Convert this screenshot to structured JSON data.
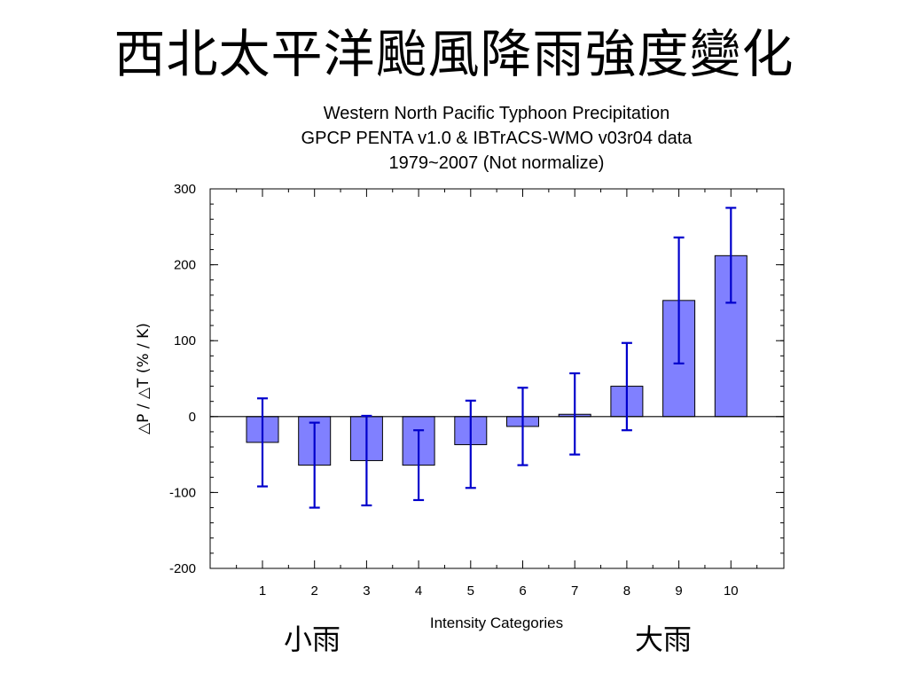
{
  "slide": {
    "title": "西北太平洋颱風降雨強度變化"
  },
  "chart_titles": [
    "Western North Pacific Typhoon Precipitation",
    "GPCP PENTA v1.0 & IBTrACS-WMO v03r04 data",
    "1979~2007 (Not normalize)"
  ],
  "chart_data": {
    "type": "bar",
    "categories": [
      "1",
      "2",
      "3",
      "4",
      "5",
      "6",
      "7",
      "8",
      "9",
      "10"
    ],
    "values": [
      -34,
      -64,
      -58,
      -64,
      -37,
      -13,
      3,
      40,
      153,
      212
    ],
    "error_low": [
      -92,
      -120,
      -117,
      -110,
      -94,
      -64,
      -50,
      -18,
      70,
      150
    ],
    "error_high": [
      24,
      -8,
      1,
      -18,
      21,
      38,
      57,
      97,
      236,
      275
    ],
    "xlabel": "Intensity Categories",
    "ylabel": "△P / △T  (% / K)",
    "ylim": [
      -200,
      300
    ],
    "yticks": [
      -200,
      -100,
      0,
      100,
      200,
      300
    ],
    "bar_color": "#8080ff",
    "error_color": "#0000cc",
    "grid": false
  },
  "annotations": {
    "left": "小雨",
    "right": "大雨"
  }
}
